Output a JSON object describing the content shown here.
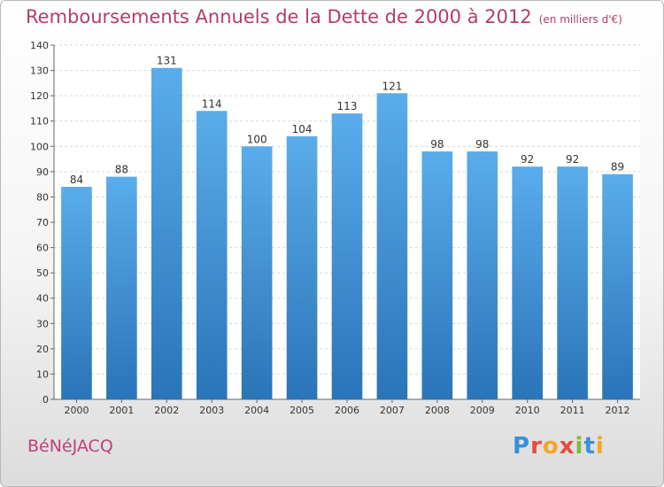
{
  "header": {
    "title": "Remboursements Annuels de la Dette de 2000 à 2012",
    "subtitle": "(en milliers d'€)"
  },
  "footer": {
    "city": "BéNéJACQ",
    "logo": "Proxiti",
    "logo_colors": [
      "#3a8fd8",
      "#e84c3d",
      "#f5a623",
      "#e84c3d",
      "#7fba3a",
      "#3a8fd8",
      "#f5a623"
    ]
  },
  "chart_data": {
    "type": "bar",
    "title": "Remboursements Annuels de la Dette de 2000 à 2012",
    "categories": [
      "2000",
      "2001",
      "2002",
      "2003",
      "2004",
      "2005",
      "2006",
      "2007",
      "2008",
      "2009",
      "2010",
      "2011",
      "2012"
    ],
    "values": [
      84,
      88,
      131,
      114,
      100,
      104,
      113,
      121,
      98,
      98,
      92,
      92,
      89
    ],
    "xlabel": "",
    "ylabel": "",
    "ylim": [
      0,
      140
    ],
    "yticks": [
      0,
      10,
      20,
      30,
      40,
      50,
      60,
      70,
      80,
      90,
      100,
      110,
      120,
      130,
      140
    ],
    "grid": true,
    "bar_color_top": "#5aacea",
    "bar_color_bottom": "#2a74b8"
  }
}
